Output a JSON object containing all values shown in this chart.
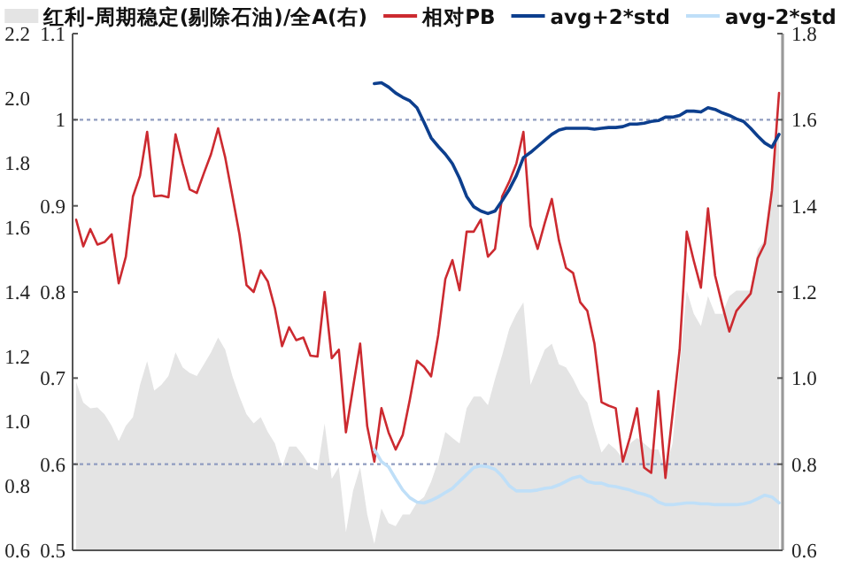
{
  "chart_data": {
    "type": "line",
    "categories": [
      null,
      null,
      null,
      null,
      null,
      null,
      null,
      null,
      null,
      null,
      null,
      null,
      null,
      null,
      null,
      null,
      null,
      null,
      null,
      null,
      null,
      null,
      null,
      null,
      null,
      null,
      null,
      null,
      null,
      null,
      null,
      null,
      null,
      null,
      null,
      null,
      null,
      null,
      null,
      null,
      null,
      null,
      null,
      null,
      null,
      null,
      null,
      null,
      null,
      null,
      null,
      null,
      null,
      null,
      null,
      null,
      null,
      null,
      null,
      null,
      null,
      null,
      null,
      null,
      null,
      null,
      null,
      null,
      null,
      null,
      null,
      null,
      null,
      null,
      null,
      null,
      null,
      null,
      null,
      null,
      null,
      null,
      null,
      null,
      null,
      null,
      null,
      null,
      null,
      null,
      null,
      null,
      null,
      null,
      null,
      null,
      null,
      null,
      null,
      null
    ],
    "series": [
      {
        "name": "红利-周期稳定(剔除石油)/全A(右)",
        "type": "area",
        "axis": "y2",
        "color": "#e4e4e4",
        "values": [
          0.991,
          0.943,
          0.93,
          0.932,
          0.916,
          0.889,
          0.854,
          0.889,
          0.909,
          0.984,
          1.039,
          0.971,
          0.984,
          1.005,
          1.06,
          1.025,
          1.012,
          1.005,
          1.032,
          1.06,
          1.094,
          1.066,
          1.005,
          0.957,
          0.916,
          0.895,
          0.909,
          0.875,
          0.848,
          0.793,
          0.841,
          0.841,
          0.82,
          0.793,
          0.786,
          0.895,
          0.766,
          0.793,
          0.642,
          0.738,
          0.793,
          0.683,
          0.615,
          0.697,
          0.663,
          0.656,
          0.683,
          0.683,
          0.711,
          0.724,
          0.759,
          0.807,
          0.875,
          0.861,
          0.848,
          0.93,
          0.957,
          0.957,
          0.937,
          0.998,
          1.053,
          1.114,
          1.149,
          1.176,
          0.984,
          1.025,
          1.066,
          1.08,
          1.032,
          1.025,
          0.998,
          0.964,
          0.943,
          0.882,
          0.827,
          0.848,
          0.834,
          0.813,
          0.848,
          0.861,
          0.848,
          0.834,
          0.834,
          0.786,
          0.848,
          1.025,
          1.203,
          1.149,
          1.121,
          1.19,
          1.149,
          1.149,
          1.19,
          1.203,
          1.203,
          1.203,
          1.299,
          1.32,
          1.45,
          1.587
        ]
      },
      {
        "name": "相对PB",
        "color": "#cc2a30",
        "values": [
          0.884,
          0.853,
          0.873,
          0.855,
          0.858,
          0.867,
          0.81,
          0.841,
          0.911,
          0.935,
          0.986,
          0.911,
          0.912,
          0.91,
          0.983,
          0.949,
          0.919,
          0.915,
          0.938,
          0.96,
          0.99,
          0.956,
          0.912,
          0.867,
          0.808,
          0.8,
          0.825,
          0.812,
          0.781,
          0.737,
          0.759,
          0.744,
          0.747,
          0.726,
          0.725,
          0.8,
          0.723,
          0.733,
          0.637,
          0.689,
          0.74,
          0.644,
          0.603,
          0.665,
          0.637,
          0.617,
          0.634,
          0.675,
          0.72,
          0.713,
          0.702,
          0.75,
          0.815,
          0.837,
          0.802,
          0.87,
          0.87,
          0.884,
          0.841,
          0.85,
          0.911,
          0.928,
          0.949,
          0.986,
          0.877,
          0.85,
          0.88,
          0.908,
          0.86,
          0.828,
          0.822,
          0.788,
          0.778,
          0.74,
          0.672,
          0.668,
          0.665,
          0.603,
          0.631,
          0.665,
          0.596,
          0.59,
          0.685,
          0.584,
          0.658,
          0.733,
          0.87,
          0.836,
          0.805,
          0.897,
          0.819,
          0.785,
          0.754,
          0.778,
          0.788,
          0.798,
          0.839,
          0.856,
          0.918,
          1.031
        ]
      },
      {
        "name": "avg+2*std",
        "color": "#0d3f8e",
        "values": [
          null,
          null,
          null,
          null,
          null,
          null,
          null,
          null,
          null,
          null,
          null,
          null,
          null,
          null,
          null,
          null,
          null,
          null,
          null,
          null,
          null,
          null,
          null,
          null,
          null,
          null,
          null,
          null,
          null,
          null,
          null,
          null,
          null,
          null,
          null,
          null,
          null,
          null,
          null,
          null,
          null,
          null,
          1.042,
          1.043,
          1.038,
          1.031,
          1.026,
          1.022,
          1.014,
          0.997,
          0.979,
          0.969,
          0.96,
          0.949,
          0.932,
          0.911,
          0.899,
          0.894,
          0.891,
          0.894,
          0.906,
          0.919,
          0.935,
          0.956,
          0.962,
          0.969,
          0.976,
          0.983,
          0.988,
          0.99,
          0.99,
          0.99,
          0.99,
          0.989,
          0.99,
          0.991,
          0.991,
          0.992,
          0.995,
          0.995,
          0.996,
          0.998,
          0.999,
          1.003,
          1.003,
          1.005,
          1.01,
          1.01,
          1.009,
          1.014,
          1.012,
          1.008,
          1.005,
          1.001,
          0.998,
          0.99,
          0.981,
          0.973,
          0.968,
          0.983
        ]
      },
      {
        "name": "avg-2*std",
        "color": "#bfdff8",
        "values": [
          null,
          null,
          null,
          null,
          null,
          null,
          null,
          null,
          null,
          null,
          null,
          null,
          null,
          null,
          null,
          null,
          null,
          null,
          null,
          null,
          null,
          null,
          null,
          null,
          null,
          null,
          null,
          null,
          null,
          null,
          null,
          null,
          null,
          null,
          null,
          null,
          null,
          null,
          null,
          null,
          null,
          null,
          0.617,
          0.603,
          0.597,
          0.583,
          0.57,
          0.561,
          0.556,
          0.555,
          0.558,
          0.562,
          0.567,
          0.572,
          0.58,
          0.588,
          0.596,
          0.598,
          0.597,
          0.594,
          0.586,
          0.575,
          0.569,
          0.569,
          0.569,
          0.57,
          0.572,
          0.573,
          0.576,
          0.58,
          0.584,
          0.586,
          0.58,
          0.578,
          0.578,
          0.575,
          0.574,
          0.572,
          0.57,
          0.567,
          0.565,
          0.562,
          0.556,
          0.553,
          0.553,
          0.554,
          0.555,
          0.555,
          0.554,
          0.554,
          0.553,
          0.553,
          0.553,
          0.553,
          0.554,
          0.556,
          0.56,
          0.564,
          0.562,
          0.555
        ]
      }
    ],
    "ylim": [
      0.5,
      1.1
    ],
    "yticks": [
      0.5,
      0.6,
      0.7,
      0.8,
      0.9,
      1,
      1.1
    ],
    "y2lim": [
      0.6,
      1.8
    ],
    "y2ticks": [
      0.6,
      {
        "value": 0.8,
        "label": "0.8"
      },
      {
        "value": 1.0,
        "label": "1.0"
      },
      1.2,
      1.4,
      1.6,
      1.8
    ],
    "y3lim": [
      0.6,
      2.2
    ],
    "y3ticks": [
      0.6,
      0.8,
      {
        "value": 1.0,
        "label": "1.0"
      },
      1.2,
      1.4,
      1.6,
      1.8,
      {
        "value": 2.0,
        "label": "2.0"
      },
      2.2
    ],
    "ref_lines": [
      {
        "axis": "y",
        "value": 1,
        "color": "#8f9cc0",
        "line_style": "dotted"
      },
      {
        "axis": "y",
        "value": 0.6,
        "color": "#8f9cc0",
        "line_style": "dotted"
      }
    ],
    "legend": "top"
  }
}
